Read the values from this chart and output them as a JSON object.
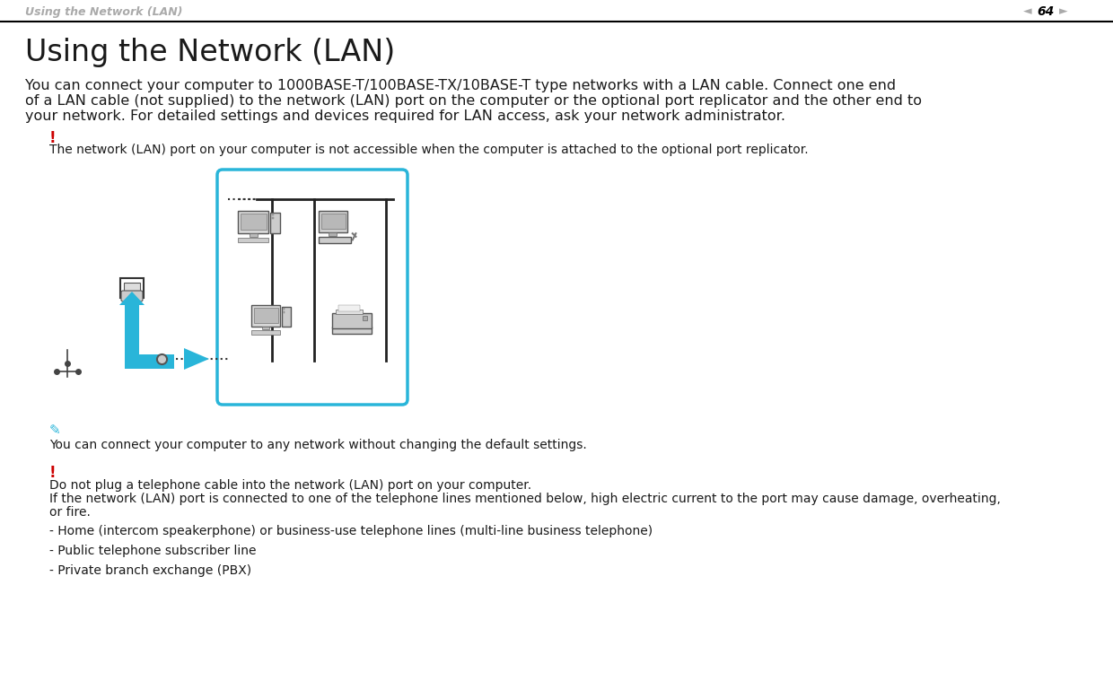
{
  "bg_color": "#ffffff",
  "header_text": "Using the Network (LAN)",
  "header_color": "#aaaaaa",
  "page_num": "64",
  "title": "Using the Network (LAN)",
  "body_text_line1": "You can connect your computer to 1000BASE-T/100BASE-TX/10BASE-T type networks with a LAN cable. Connect one end",
  "body_text_line2": "of a LAN cable (not supplied) to the network (LAN) port on the computer or the optional port replicator and the other end to",
  "body_text_line3": "your network. For detailed settings and devices required for LAN access, ask your network administrator.",
  "warning1_symbol": "!",
  "warning1_text": "The network (LAN) port on your computer is not accessible when the computer is attached to the optional port replicator.",
  "note_text": "You can connect your computer to any network without changing the default settings.",
  "warning2_symbol": "!",
  "warning2_text1": "Do not plug a telephone cable into the network (LAN) port on your computer.",
  "warning2_text2": "If the network (LAN) port is connected to one of the telephone lines mentioned below, high electric current to the port may cause damage, overheating,",
  "warning2_text3": "or fire.",
  "bullet1": "- Home (intercom speakerphone) or business-use telephone lines (multi-line business telephone)",
  "bullet2": "- Public telephone subscriber line",
  "bullet3": "- Private branch exchange (PBX)",
  "red_color": "#cc0000",
  "blue_color": "#29b5d9",
  "dark_color": "#1a1a1a",
  "gray_color": "#888888",
  "light_gray": "#cccccc",
  "diagram_border_color": "#29b5d9",
  "title_fontsize": 24,
  "body_fontsize": 11.5,
  "small_fontsize": 10,
  "header_fontsize": 9
}
